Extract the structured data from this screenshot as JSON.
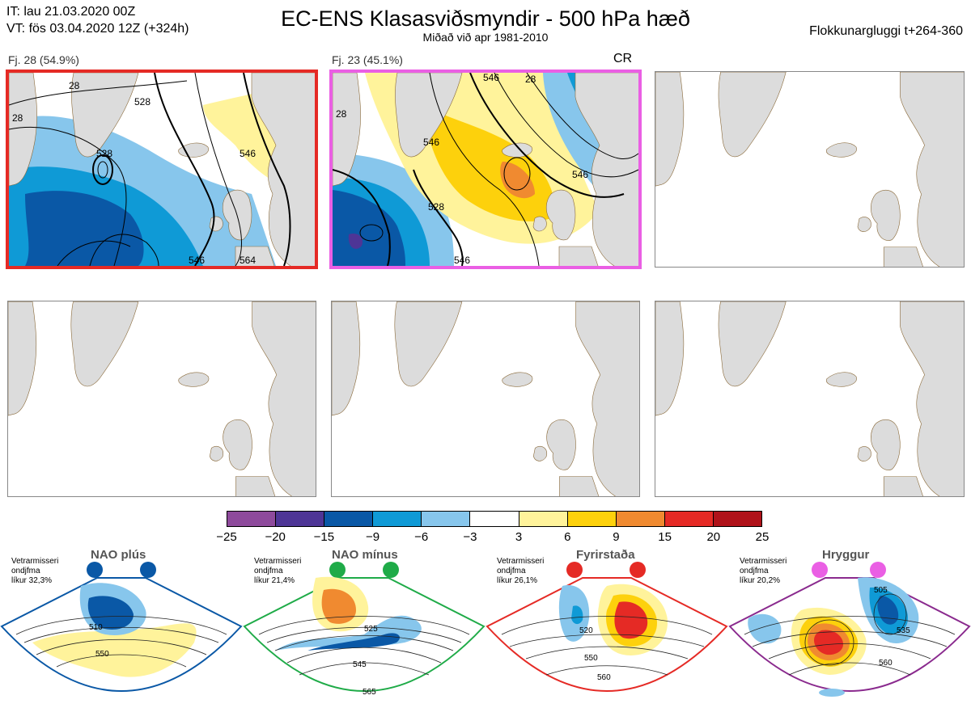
{
  "header": {
    "it": "IT: lau 21.03.2020 00Z",
    "vt": "VT: fös 03.04.2020 12Z  (+324h)",
    "title": "EC-ENS Klasasviðsmyndir - 500 hPa hæð",
    "subtitle": "Miðað við apr 1981-2010",
    "right": "Flokkunargluggi t+264-360"
  },
  "panels": [
    {
      "label": "Fj. 28 (54.9%)",
      "state": "selected-red",
      "contours": [
        "528",
        "528",
        "546",
        "546",
        "564",
        "28",
        "28"
      ]
    },
    {
      "label": "Fj. 23 (45.1%)",
      "state": "selected-pink",
      "tag": "CR",
      "contours": [
        "546",
        "546",
        "546",
        "528",
        "28",
        "28",
        "546"
      ]
    },
    {
      "label": "",
      "state": "empty"
    },
    {
      "label": "",
      "state": "empty"
    },
    {
      "label": "",
      "state": "empty"
    },
    {
      "label": "",
      "state": "empty"
    }
  ],
  "colorbar": {
    "colors": [
      "#8e4a9c",
      "#4e3596",
      "#0a58a6",
      "#0f9ad6",
      "#87c6ec",
      "#ffffff",
      "#fff39b",
      "#fdd10c",
      "#f08a30",
      "#e52a25",
      "#b0121a"
    ],
    "ticks": [
      "−25",
      "−20",
      "−15",
      "−9",
      "−6",
      "−3",
      "3",
      "6",
      "9",
      "15",
      "20",
      "25"
    ]
  },
  "regimes": [
    {
      "name": "NAO plús",
      "note1": "Vetrarmisseri",
      "note2": "ondjfma",
      "note3": "líkur 32,3%",
      "color": "#0a58a6",
      "labels": [
        "510",
        "550"
      ]
    },
    {
      "name": "NAO mínus",
      "note1": "Vetrarmisseri",
      "note2": "ondjfma",
      "note3": "líkur 21,4%",
      "color": "#1fab48",
      "labels": [
        "525",
        "545",
        "565"
      ]
    },
    {
      "name": "Fyrirstaða",
      "note1": "Vetrarmisseri",
      "note2": "ondjfma",
      "note3": "líkur 26,1%",
      "color": "#e52a25",
      "labels": [
        "520",
        "550",
        "560"
      ]
    },
    {
      "name": "Hryggur",
      "note1": "Vetrarmisseri",
      "note2": "ondjfma",
      "note3": "líkur 20,2%",
      "color": "#ea5fe4",
      "labels": [
        "505",
        "535",
        "560"
      ]
    }
  ],
  "icons": {
    "map": "map-panel-icon",
    "regime_marker": "circle-marker-icon"
  }
}
